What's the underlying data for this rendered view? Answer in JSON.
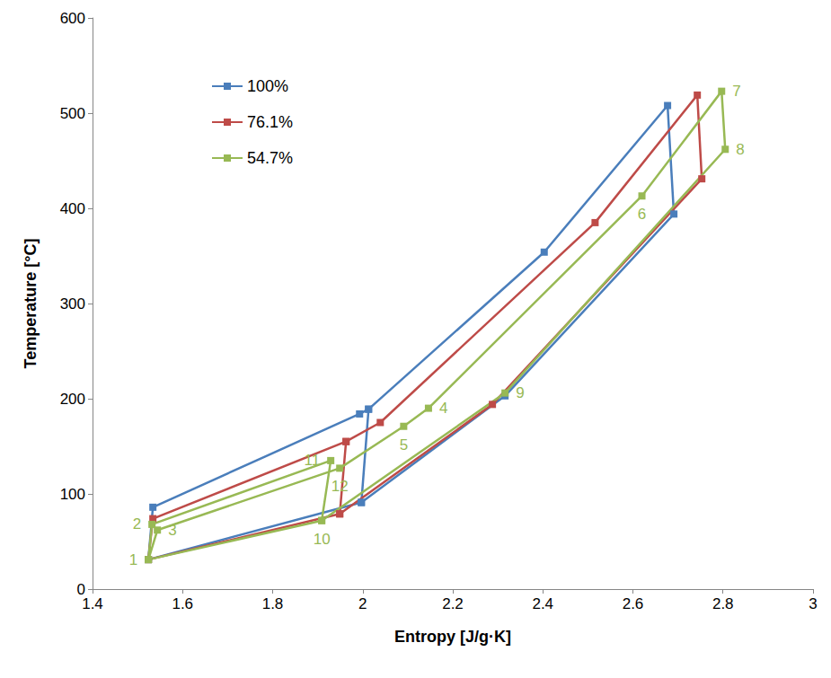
{
  "chart_data": {
    "type": "line",
    "x_label": "Entropy [J/g·K]",
    "y_label": "Temperature [°C]",
    "xlim": [
      1.4,
      3
    ],
    "xticks": [
      1.4,
      1.6,
      1.8,
      2,
      2.2,
      2.4,
      2.6,
      2.8,
      3
    ],
    "ylim": [
      0,
      600
    ],
    "yticks": [
      0,
      100,
      200,
      300,
      400,
      500,
      600
    ],
    "grid": false,
    "legend": "upper left",
    "marker": "square",
    "series": [
      {
        "name": "100%",
        "color": "#4a7ebb",
        "x": [
          1.997,
          2.013,
          1.993,
          1.534,
          1.524,
          1.997,
          2.316,
          2.691,
          2.677,
          2.403,
          2.013
        ],
        "values": [
          91,
          189,
          184,
          86,
          31,
          91,
          203,
          394,
          508,
          354,
          189
        ]
      },
      {
        "name": "76.1%",
        "color": "#be4b48",
        "x": [
          1.949,
          1.963,
          1.534,
          1.524,
          1.949,
          2.288,
          2.753,
          2.743,
          2.516,
          2.039,
          1.963
        ],
        "values": [
          79,
          155,
          74,
          31,
          79,
          194,
          431,
          519,
          385,
          175,
          155
        ]
      },
      {
        "name": "54.7%",
        "color": "#98b954",
        "x": [
          1.909,
          1.929,
          1.532,
          1.524,
          1.909,
          2.316,
          2.805,
          2.797,
          2.62,
          2.146,
          2.091,
          1.949,
          1.544,
          1.524
        ],
        "values": [
          72,
          135,
          68,
          31,
          72,
          206,
          462,
          523,
          413,
          190,
          171,
          127,
          62,
          31
        ],
        "point_labels": [
          "10",
          "11",
          "2",
          "1",
          null,
          "9",
          "8",
          "7",
          "6",
          "4",
          "5",
          "12",
          "3",
          null
        ]
      }
    ]
  }
}
